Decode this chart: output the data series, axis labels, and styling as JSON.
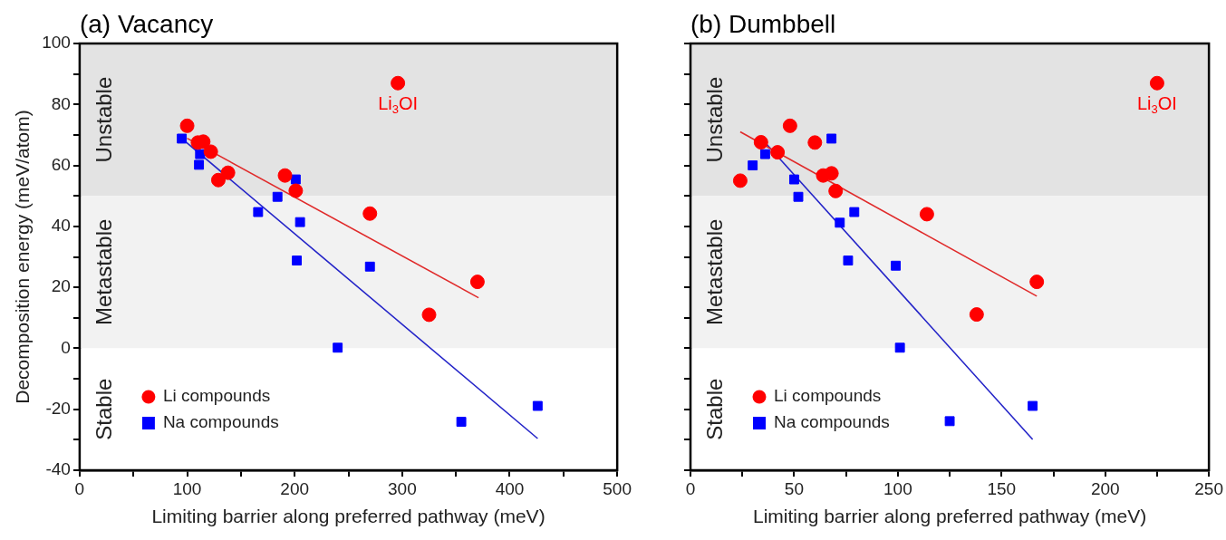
{
  "chart_data": [
    {
      "type": "scatter",
      "title": "(a) Vacancy",
      "xlabel": "Limiting barrier along preferred pathway (meV)",
      "ylabel": "Decomposition energy (meV/atom)",
      "xlim": [
        0,
        500
      ],
      "xticks": [
        0,
        {
          "value": 50,
          "label": null
        },
        100,
        {
          "value": 150,
          "label": null
        },
        200,
        {
          "value": 250,
          "label": null
        },
        300,
        {
          "value": 350,
          "label": null
        },
        400,
        {
          "value": 450,
          "label": null
        },
        500
      ],
      "ylim": [
        -40,
        100
      ],
      "yticks": [
        -40,
        {
          "value": -30,
          "label": null
        },
        -20,
        {
          "value": -10,
          "label": null
        },
        0,
        {
          "value": 10,
          "label": null
        },
        20,
        {
          "value": 30,
          "label": null
        },
        40,
        {
          "value": 50,
          "label": null
        },
        60,
        {
          "value": 70,
          "label": null
        },
        80,
        {
          "value": 90,
          "label": null
        },
        100
      ],
      "grid": false,
      "legend": "bottom left",
      "bands": [
        {
          "axis": "y",
          "from": 50,
          "to": 100,
          "label": "Unstable",
          "color": "#e3e3e3"
        },
        {
          "axis": "y",
          "from": 0,
          "to": 50,
          "label": "Metastable",
          "color": "#f2f2f2"
        },
        {
          "axis": "y",
          "from": -40,
          "to": 0,
          "label": "Stable",
          "color": "#ffffff"
        }
      ],
      "annotations": [
        {
          "text": "Li$_{3}$OI",
          "x": 296,
          "y": 87
        }
      ],
      "series": [
        {
          "name": "Li compounds",
          "marker": "circle",
          "color": "#ff0000",
          "x": [
            100,
            110,
            115,
            122,
            129,
            138,
            191,
            201,
            270,
            296,
            325,
            370
          ],
          "values": [
            73,
            67.5,
            67.8,
            64.5,
            55.2,
            57.6,
            56.7,
            51.7,
            44.2,
            87,
            11,
            21.8
          ]
        },
        {
          "name": "Na compounds",
          "marker": "square",
          "color": "#0000ff",
          "x": [
            95,
            111,
            112,
            166,
            184,
            201,
            202,
            205,
            240,
            270,
            355,
            426
          ],
          "values": [
            68.8,
            60.2,
            63.7,
            44.7,
            49.7,
            55.4,
            28.8,
            41.4,
            0.2,
            26.8,
            -24.1,
            -18.9
          ]
        },
        {
          "type": "line",
          "marker": "none",
          "line_style": "solid",
          "color": "#e02a2a",
          "x": [
            100,
            371
          ],
          "values": [
            68.9,
            16.6
          ]
        },
        {
          "type": "line",
          "marker": "none",
          "line_style": "solid",
          "color": "#2424c8",
          "x": [
            95,
            426
          ],
          "values": [
            68.8,
            -29.6
          ]
        }
      ]
    },
    {
      "type": "scatter",
      "title": "(b) Dumbbell",
      "xlabel": "Limiting barrier along preferred pathway (meV)",
      "xlim": [
        0,
        250
      ],
      "xticks": [
        0,
        {
          "value": 25,
          "label": null
        },
        50,
        {
          "value": 75,
          "label": null
        },
        100,
        {
          "value": 125,
          "label": null
        },
        150,
        {
          "value": 175,
          "label": null
        },
        200,
        {
          "value": 225,
          "label": null
        },
        250
      ],
      "ylim": [
        -40,
        100
      ],
      "yticks": [
        -40,
        {
          "value": -30,
          "label": null
        },
        -20,
        {
          "value": -10,
          "label": null
        },
        0,
        {
          "value": 10,
          "label": null
        },
        20,
        {
          "value": 30,
          "label": null
        },
        40,
        {
          "value": 50,
          "label": null
        },
        60,
        {
          "value": 70,
          "label": null
        },
        80,
        {
          "value": 90,
          "label": null
        },
        100
      ],
      "tick_labels": "x",
      "grid": false,
      "legend": "bottom left",
      "bands": [
        {
          "axis": "y",
          "from": 50,
          "to": 100,
          "label": "Unstable",
          "color": "#e3e3e3"
        },
        {
          "axis": "y",
          "from": 0,
          "to": 50,
          "label": "Metastable",
          "color": "#f2f2f2"
        },
        {
          "axis": "y",
          "from": -40,
          "to": 0,
          "label": "Stable",
          "color": "#ffffff"
        }
      ],
      "annotations": [
        {
          "text": "Li$_{3}$OI",
          "x": 225,
          "y": 87
        }
      ],
      "series": [
        {
          "name": "Li compounds",
          "marker": "circle",
          "color": "#ff0000",
          "x": [
            24,
            34,
            42,
            48,
            60,
            64,
            68,
            70,
            114,
            138,
            167,
            225
          ],
          "values": [
            55,
            67.6,
            64.3,
            73,
            67.5,
            56.7,
            57.4,
            51.6,
            44,
            11.1,
            21.8,
            87
          ]
        },
        {
          "name": "Na compounds",
          "marker": "square",
          "color": "#0000ff",
          "x": [
            30,
            36,
            50,
            52,
            68,
            72,
            76,
            79,
            99,
            101,
            125,
            165
          ],
          "values": [
            60,
            63.7,
            55.4,
            49.7,
            68.8,
            41.2,
            28.8,
            44.7,
            27.1,
            0.2,
            -23.9,
            -18.9
          ]
        },
        {
          "type": "line",
          "marker": "none",
          "line_style": "solid",
          "color": "#e02a2a",
          "x": [
            24,
            167
          ],
          "values": [
            71,
            17.1
          ]
        },
        {
          "type": "line",
          "marker": "none",
          "line_style": "solid",
          "color": "#2424c8",
          "x": [
            34,
            165
          ],
          "values": [
            69,
            -29.9
          ]
        }
      ]
    }
  ]
}
